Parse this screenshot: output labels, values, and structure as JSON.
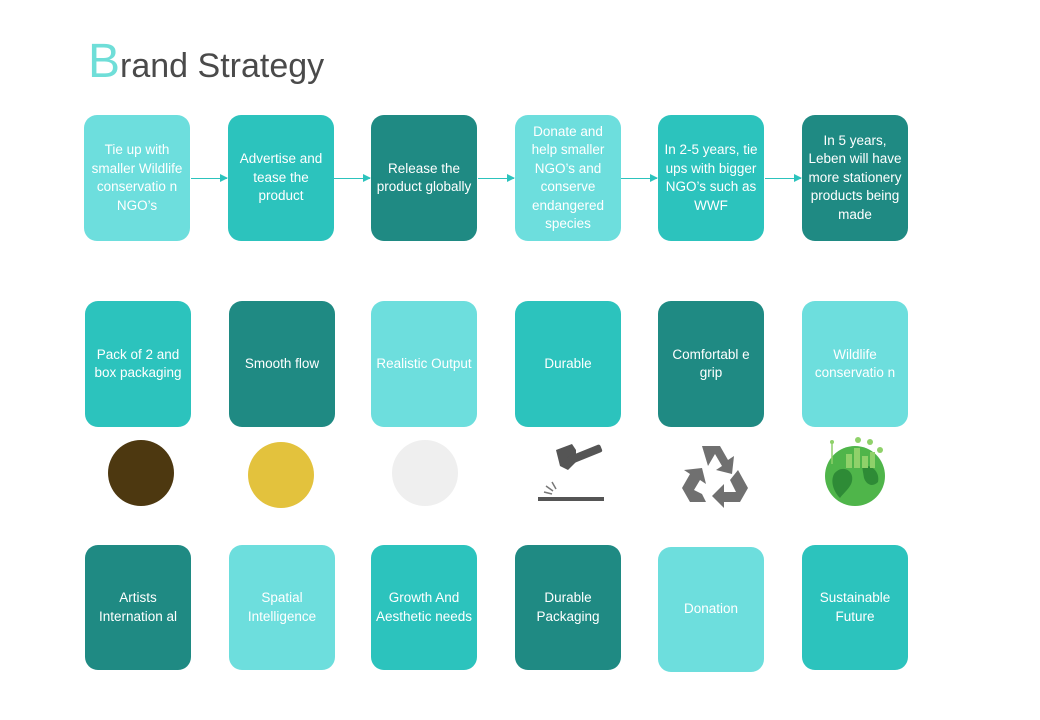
{
  "title": {
    "first_letter": "B",
    "rest": "rand Strategy"
  },
  "timeline": [
    "Tie up with smaller Wildlife conservatio n NGO’s",
    "Advertise and tease the product",
    "Release the product globally",
    "Donate and help smaller NGO’s and conserve endangered species",
    "In 2-5 years, tie ups with bigger NGO’s such as WWF",
    "In 5 years, Leben will have more stationery products being made"
  ],
  "features": [
    "Pack of 2 and box packaging",
    "Smooth flow",
    "Realistic Output",
    "Durable",
    "Comfortabl e grip",
    "Wildlife conservatio n"
  ],
  "symbols": [
    {
      "name": "brown-circle",
      "color": "#4d3810"
    },
    {
      "name": "gold-circle",
      "color": "#e3c23d"
    },
    {
      "name": "white-circle",
      "color": "#efefef"
    },
    {
      "name": "hammer-icon"
    },
    {
      "name": "recycle-icon"
    },
    {
      "name": "green-earth-icon"
    }
  ],
  "targets": [
    "Artists Internation al",
    "Spatial Intelligence",
    "Growth And Aesthetic needs",
    "Durable Packaging",
    "Donation",
    "Sustainable Future"
  ],
  "colors": {
    "light": "#6ddedd",
    "mid": "#2cc3bd",
    "dark": "#1f8a83",
    "title_accent": "#6fded8"
  }
}
